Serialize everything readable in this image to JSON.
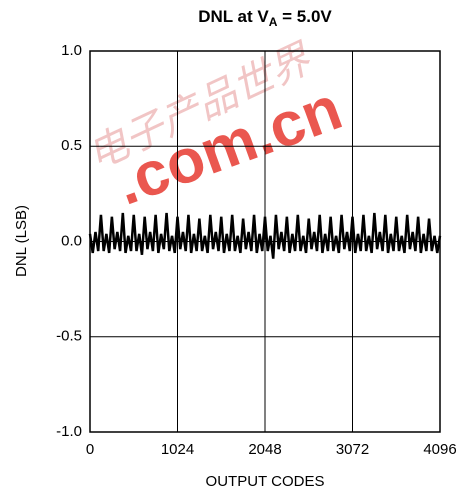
{
  "chart_data": {
    "type": "line",
    "title_parts": [
      "DNL at V",
      "A",
      " = 5.0V"
    ],
    "x_label": "OUTPUT CODES",
    "y_label": "DNL (LSB)",
    "watermark": [
      "电子产品世界",
      ".com.cn"
    ],
    "xlim": [
      0,
      4096
    ],
    "xticks": [
      0,
      1024,
      2048,
      3072,
      4096
    ],
    "ylim": [
      -1,
      1
    ],
    "yticks": [
      {
        "value": -1,
        "label": "-1.0"
      },
      {
        "value": -0.5,
        "label": "-0.5"
      },
      {
        "value": 0,
        "label": "0.0"
      },
      {
        "value": 0.5,
        "label": "0.5"
      },
      {
        "value": 1,
        "label": "1.0"
      }
    ],
    "grid": true,
    "series": [
      {
        "color": "#000000",
        "x": [
          0,
          32,
          64,
          96,
          128,
          160,
          192,
          224,
          256,
          288,
          320,
          352,
          384,
          416,
          448,
          480,
          512,
          544,
          576,
          608,
          640,
          672,
          704,
          736,
          768,
          800,
          832,
          864,
          896,
          928,
          960,
          992,
          1024,
          1056,
          1088,
          1120,
          1152,
          1184,
          1216,
          1248,
          1280,
          1312,
          1344,
          1376,
          1408,
          1440,
          1472,
          1504,
          1536,
          1568,
          1600,
          1632,
          1664,
          1696,
          1728,
          1760,
          1792,
          1824,
          1856,
          1888,
          1920,
          1952,
          1984,
          2016,
          2048,
          2080,
          2112,
          2144,
          2176,
          2208,
          2240,
          2272,
          2304,
          2336,
          2368,
          2400,
          2432,
          2464,
          2496,
          2528,
          2560,
          2592,
          2624,
          2656,
          2688,
          2720,
          2752,
          2784,
          2816,
          2848,
          2880,
          2912,
          2944,
          2976,
          3008,
          3040,
          3072,
          3104,
          3136,
          3168,
          3200,
          3232,
          3264,
          3296,
          3328,
          3360,
          3392,
          3424,
          3456,
          3488,
          3520,
          3552,
          3584,
          3616,
          3648,
          3680,
          3712,
          3744,
          3776,
          3808,
          3840,
          3872,
          3904,
          3936,
          3968,
          4000,
          4032,
          4064,
          4096
        ],
        "values": [
          0.04,
          -0.06,
          0.05,
          -0.05,
          0.14,
          -0.05,
          0.04,
          -0.06,
          0.13,
          -0.04,
          0.05,
          -0.05,
          0.15,
          -0.06,
          0.03,
          -0.05,
          0.14,
          -0.05,
          0.04,
          -0.07,
          0.13,
          -0.04,
          0.05,
          -0.05,
          0.14,
          -0.06,
          0.04,
          -0.04,
          0.15,
          -0.05,
          0.03,
          -0.06,
          0.13,
          -0.04,
          0.05,
          -0.05,
          0.14,
          -0.06,
          0.04,
          -0.05,
          0.12,
          -0.05,
          0.03,
          -0.06,
          0.14,
          -0.04,
          0.05,
          -0.05,
          0.13,
          -0.06,
          0.04,
          -0.05,
          0.14,
          -0.05,
          0.03,
          -0.06,
          0.12,
          -0.04,
          0.05,
          -0.05,
          0.14,
          -0.06,
          0.04,
          -0.05,
          0.13,
          -0.05,
          0.03,
          -0.09,
          0.14,
          -0.04,
          0.05,
          -0.05,
          0.13,
          -0.06,
          0.04,
          -0.05,
          0.14,
          -0.05,
          0.03,
          -0.06,
          0.12,
          -0.04,
          0.05,
          -0.05,
          0.14,
          -0.06,
          0.04,
          -0.05,
          0.13,
          -0.05,
          0.03,
          -0.06,
          0.14,
          -0.04,
          0.05,
          -0.05,
          0.13,
          -0.06,
          0.04,
          -0.05,
          0.14,
          -0.05,
          0.03,
          -0.06,
          0.15,
          -0.04,
          0.05,
          -0.05,
          0.14,
          -0.06,
          0.04,
          -0.05,
          0.13,
          -0.05,
          0.03,
          -0.06,
          0.14,
          -0.04,
          0.05,
          -0.05,
          0.13,
          -0.06,
          0.04,
          -0.05,
          0.12,
          -0.05,
          0.03,
          -0.06,
          0.03
        ]
      }
    ]
  }
}
